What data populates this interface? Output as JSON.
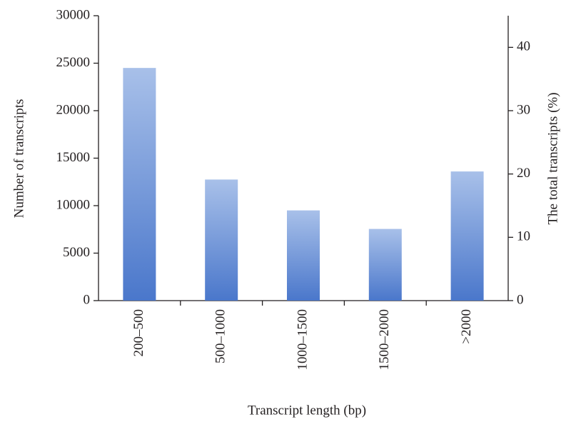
{
  "chart_data": {
    "type": "bar",
    "x_label": "Transcript length (bp)",
    "y_label": "Number of transcripts",
    "y2_label": "The total transcripts (%)",
    "categories": [
      "200–500",
      "500–1000",
      "1000–1500",
      "1500–2000",
      ">2000"
    ],
    "values": [
      24500,
      12750,
      9500,
      7550,
      13600
    ],
    "gradient": [
      "#a8c0e9",
      "#4a77cb"
    ],
    "ylim": [
      0,
      30000
    ],
    "yticks": [
      0,
      5000,
      10000,
      15000,
      20000,
      25000,
      30000
    ],
    "y2lim": [
      0,
      45
    ],
    "y2ticks": [
      0,
      10,
      20,
      30,
      40
    ]
  }
}
